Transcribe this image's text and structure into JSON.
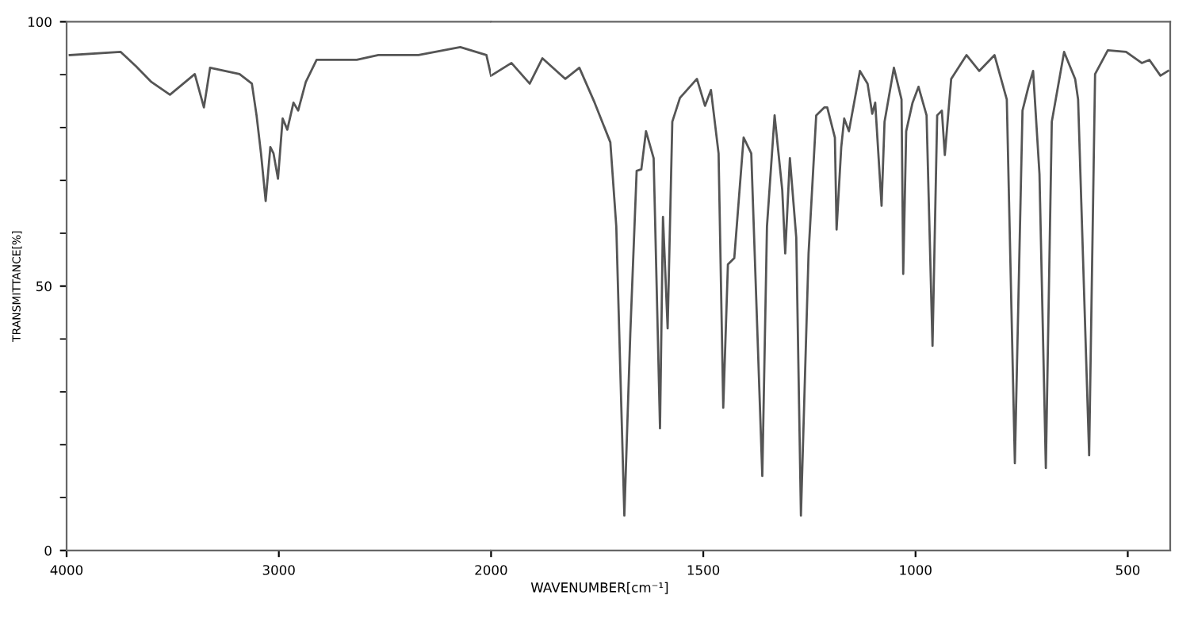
{
  "chart_data": [
    {
      "type": "line",
      "ylabel": "TRANSMITTANCE[%]",
      "xlim": [
        4000,
        2000
      ],
      "ylim": [
        0,
        100
      ],
      "xticks": [
        4000,
        3000,
        2000
      ],
      "yticks": [
        0,
        {
          "value": 10,
          "label": null
        },
        {
          "value": 20,
          "label": null
        },
        {
          "value": 30,
          "label": null
        },
        {
          "value": 40,
          "label": null
        },
        50,
        {
          "value": 60,
          "label": null
        },
        {
          "value": 70,
          "label": null
        },
        {
          "value": 80,
          "label": null
        },
        {
          "value": 90,
          "label": null
        },
        100
      ],
      "grid": false,
      "legend": false,
      "marker": "none",
      "line_style": "solid",
      "series": [
        {
          "color": "#555555",
          "x": [
            3985,
            3745,
            3673,
            3600,
            3513,
            3396,
            3353,
            3324,
            3185,
            3127,
            3105,
            3084,
            3062,
            3040,
            3025,
            3004,
            2982,
            2960,
            2931,
            2909,
            2873,
            2822,
            2633,
            2531,
            2342,
            2145,
            2022,
            2000
          ],
          "values": [
            93.7,
            94.3,
            91.6,
            88.6,
            86.2,
            90.1,
            83.8,
            91.3,
            90.1,
            88.3,
            82.3,
            75.1,
            66.1,
            76.3,
            75.1,
            70.3,
            81.7,
            79.6,
            84.7,
            83.2,
            88.6,
            92.8,
            92.8,
            93.7,
            93.7,
            95.2,
            93.7,
            89.8
          ]
        }
      ]
    },
    {
      "type": "line",
      "xlabel": "WAVENUMBER[cm⁻¹]",
      "xlim": [
        2000,
        400
      ],
      "ylim": [
        0,
        100
      ],
      "xticks": [
        1500,
        1000,
        500
      ],
      "tick_labels": "x",
      "grid": false,
      "legend": false,
      "marker": "none",
      "line_style": "solid",
      "series": [
        {
          "color": "#555555",
          "x": [
            2000,
            1952,
            1909,
            1879,
            1825,
            1792,
            1756,
            1719,
            1705,
            1686,
            1672,
            1657,
            1646,
            1635,
            1617,
            1602,
            1595,
            1584,
            1573,
            1555,
            1515,
            1496,
            1482,
            1464,
            1453,
            1442,
            1427,
            1405,
            1387,
            1361,
            1350,
            1332,
            1314,
            1307,
            1296,
            1281,
            1270,
            1252,
            1234,
            1215,
            1208,
            1190,
            1186,
            1175,
            1168,
            1157,
            1131,
            1113,
            1102,
            1095,
            1080,
            1073,
            1051,
            1033,
            1029,
            1022,
            1007,
            993,
            974,
            960,
            949,
            938,
            931,
            916,
            880,
            850,
            814,
            785,
            766,
            748,
            734,
            723,
            708,
            693,
            679,
            650,
            624,
            617,
            591,
            577,
            547,
            504,
            467,
            449,
            423,
            405
          ],
          "values": [
            89.8,
            92.2,
            88.3,
            93.1,
            89.2,
            91.3,
            84.7,
            77.2,
            61.3,
            6.6,
            41,
            71.8,
            72.1,
            79.3,
            74.2,
            23.1,
            63.1,
            42,
            81.1,
            85.6,
            89.2,
            84.1,
            87.1,
            75.1,
            27,
            54.1,
            55.3,
            78.1,
            75.1,
            14.1,
            61.3,
            82.3,
            68.2,
            56.2,
            74.2,
            59.2,
            6.6,
            56.2,
            82.3,
            83.8,
            83.8,
            78.1,
            60.7,
            76.3,
            81.7,
            79.3,
            90.7,
            88.3,
            82.6,
            84.7,
            65.2,
            81.1,
            91.3,
            85.3,
            52.3,
            79.3,
            84.7,
            87.7,
            82.3,
            38.7,
            82.3,
            83.2,
            74.8,
            89.2,
            93.7,
            90.7,
            93.7,
            85.3,
            16.5,
            83.2,
            87.7,
            90.7,
            71.2,
            15.6,
            81.1,
            94.3,
            89.2,
            85.3,
            18,
            90.1,
            94.6,
            94.3,
            92.2,
            92.8,
            89.8,
            90.7
          ]
        }
      ]
    }
  ]
}
